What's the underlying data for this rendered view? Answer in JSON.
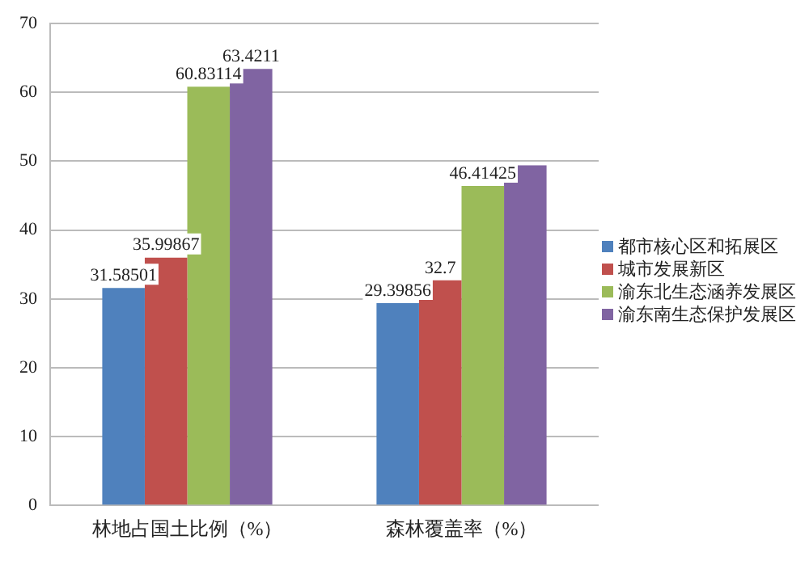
{
  "chart_data": {
    "type": "bar",
    "categories": [
      "林地占国土比例（%）",
      "森林覆盖率（%）"
    ],
    "series": [
      {
        "name": "都市核心区和拓展区",
        "color": "#4f81bd",
        "values": [
          31.58501,
          29.39856
        ],
        "value_labels": [
          "31.58501",
          "29.39856"
        ]
      },
      {
        "name": "城市发展新区",
        "color": "#c0504d",
        "values": [
          35.99867,
          32.7
        ],
        "value_labels": [
          "35.99867",
          "32.7"
        ]
      },
      {
        "name": "渝东北生态涵养发展区",
        "color": "#9bbb59",
        "values": [
          60.83114,
          46.41425
        ],
        "value_labels": [
          "60.83114",
          "46.41425"
        ]
      },
      {
        "name": "渝东南生态保护发展区",
        "color": "#8064a2",
        "values": [
          63.4211,
          49.4
        ],
        "value_labels": [
          "63.4211",
          null
        ]
      }
    ],
    "ylim": [
      0,
      70
    ],
    "yticks": [
      0,
      10,
      20,
      30,
      40,
      50,
      60,
      70
    ],
    "grid": "y",
    "legend": "right"
  }
}
